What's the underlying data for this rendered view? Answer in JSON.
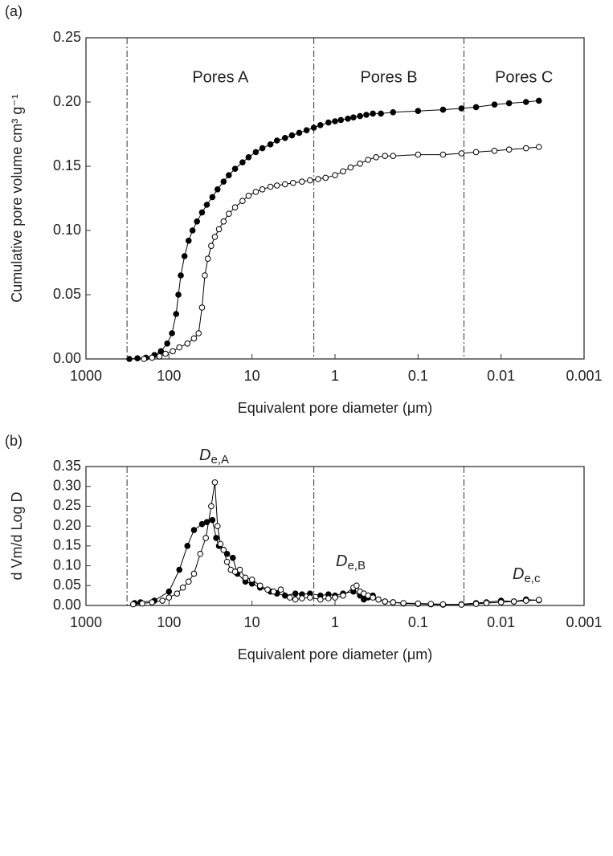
{
  "chart_data": [
    {
      "type": "line",
      "panel_label": "(a)",
      "x_scale": "log",
      "xlabel": "Equivalent pore diameter (μm)",
      "ylabel": "Cumulative pore volume cm³ g⁻¹",
      "xlim": [
        1000,
        0.001
      ],
      "xticks": [
        1000,
        100,
        10,
        1,
        0.1,
        0.01,
        0.001
      ],
      "ylim": [
        0,
        0.25
      ],
      "yticks": [
        {
          "value": 0,
          "label": "0.00"
        },
        0.05,
        {
          "value": 0.1,
          "label": "0.10"
        },
        0.15,
        {
          "value": 0.2,
          "label": "0.20"
        },
        0.25
      ],
      "boundaries": [
        320,
        1.8,
        0.028
      ],
      "region_labels": [
        "Pores A",
        "Pores B",
        "Pores C"
      ],
      "series": [
        {
          "color": "#000000",
          "marker_fill": "#000000",
          "x": [
            300,
            240,
            190,
            150,
            125,
            105,
            92,
            82,
            77,
            72,
            65,
            58,
            52,
            46,
            40,
            35,
            30,
            26,
            22,
            19,
            16,
            13,
            11,
            9,
            7.5,
            6,
            5,
            4,
            3.3,
            2.7,
            2.2,
            1.8,
            1.5,
            1.2,
            1,
            0.85,
            0.7,
            0.6,
            0.5,
            0.42,
            0.35,
            0.28,
            0.2,
            0.1,
            0.05,
            0.03,
            0.02,
            0.012,
            0.008,
            0.005,
            0.0035
          ],
          "values": [
            0,
            0.0005,
            0.001,
            0.003,
            0.006,
            0.012,
            0.02,
            0.035,
            0.05,
            0.065,
            0.08,
            0.092,
            0.1,
            0.107,
            0.114,
            0.12,
            0.126,
            0.132,
            0.138,
            0.143,
            0.148,
            0.153,
            0.157,
            0.161,
            0.164,
            0.167,
            0.17,
            0.172,
            0.174,
            0.176,
            0.178,
            0.18,
            0.182,
            0.184,
            0.185,
            0.186,
            0.187,
            0.188,
            0.189,
            0.19,
            0.191,
            0.191,
            0.192,
            0.193,
            0.194,
            0.195,
            0.196,
            0.198,
            0.199,
            0.2,
            0.201
          ]
        },
        {
          "color": "#000000",
          "marker_fill": "#ffffff",
          "x": [
            200,
            160,
            130,
            110,
            90,
            75,
            60,
            50,
            44,
            40,
            37,
            34,
            31,
            28,
            25,
            22,
            19,
            16,
            13,
            11,
            9,
            7.5,
            6,
            5,
            4,
            3.2,
            2.5,
            2,
            1.6,
            1.3,
            1,
            0.8,
            0.65,
            0.5,
            0.4,
            0.32,
            0.25,
            0.2,
            0.1,
            0.05,
            0.03,
            0.02,
            0.012,
            0.008,
            0.005,
            0.0035
          ],
          "values": [
            0,
            0.001,
            0.002,
            0.004,
            0.006,
            0.009,
            0.012,
            0.016,
            0.02,
            0.04,
            0.065,
            0.078,
            0.088,
            0.095,
            0.101,
            0.107,
            0.113,
            0.118,
            0.123,
            0.127,
            0.13,
            0.132,
            0.134,
            0.135,
            0.136,
            0.137,
            0.138,
            0.139,
            0.14,
            0.141,
            0.143,
            0.146,
            0.149,
            0.152,
            0.155,
            0.157,
            0.158,
            0.158,
            0.159,
            0.159,
            0.16,
            0.161,
            0.162,
            0.163,
            0.164,
            0.165
          ]
        }
      ]
    },
    {
      "type": "line",
      "panel_label": "(b)",
      "x_scale": "log",
      "xlabel": "Equivalent pore diameter (μm)",
      "ylabel": "d Vm/d Log D",
      "xlim": [
        1000,
        0.001
      ],
      "xticks": [
        1000,
        100,
        10,
        1,
        0.1,
        0.01,
        0.001
      ],
      "ylim": [
        0,
        0.35
      ],
      "yticks": [
        {
          "value": 0,
          "label": "0.00"
        },
        0.05,
        {
          "value": 0.1,
          "label": "0.10"
        },
        0.15,
        {
          "value": 0.2,
          "label": "0.20"
        },
        0.25,
        {
          "value": 0.3,
          "label": "0.30"
        },
        0.35
      ],
      "boundaries": [
        320,
        1.8,
        0.028
      ],
      "annotations": [
        {
          "symbol": "D",
          "subscript": "e,A"
        },
        {
          "symbol": "D",
          "subscript": "e,B"
        },
        {
          "symbol": "D",
          "subscript": "e,c"
        }
      ],
      "series": [
        {
          "color": "#000000",
          "marker_fill": "#000000",
          "x": [
            260,
            220,
            150,
            100,
            75,
            60,
            50,
            40,
            35,
            30,
            27,
            25,
            22,
            20,
            17,
            15,
            12,
            10,
            8,
            6,
            5,
            4,
            3,
            2.5,
            2,
            1.5,
            1.2,
            1,
            0.8,
            0.6,
            0.5,
            0.45,
            0.4,
            0.35,
            0.3,
            0.25,
            0.2,
            0.15,
            0.1,
            0.07,
            0.05,
            0.03,
            0.02,
            0.015,
            0.01,
            0.007,
            0.005,
            0.0035
          ],
          "values": [
            0.006,
            0.008,
            0.012,
            0.035,
            0.09,
            0.15,
            0.19,
            0.205,
            0.21,
            0.215,
            0.17,
            0.15,
            0.14,
            0.13,
            0.12,
            0.08,
            0.06,
            0.055,
            0.045,
            0.035,
            0.03,
            0.025,
            0.03,
            0.028,
            0.03,
            0.025,
            0.028,
            0.025,
            0.03,
            0.035,
            0.025,
            0.015,
            0.02,
            0.025,
            0.015,
            0.01,
            0.008,
            0.005,
            0.004,
            0.003,
            0.002,
            0.003,
            0.006,
            0.008,
            0.012,
            0.01,
            0.015,
            0.013
          ]
        },
        {
          "color": "#000000",
          "marker_fill": "#ffffff",
          "x": [
            270,
            210,
            160,
            120,
            100,
            80,
            68,
            58,
            50,
            42,
            36,
            31,
            28,
            26,
            24,
            22,
            20,
            18,
            16,
            14,
            12,
            10,
            8,
            6.5,
            5.5,
            4.5,
            3.5,
            3,
            2.5,
            2,
            1.5,
            1.2,
            1,
            0.8,
            0.6,
            0.55,
            0.5,
            0.45,
            0.4,
            0.35,
            0.3,
            0.25,
            0.2,
            0.15,
            0.1,
            0.07,
            0.05,
            0.03,
            0.02,
            0.015,
            0.01,
            0.007,
            0.005,
            0.0035
          ],
          "values": [
            0.003,
            0.005,
            0.008,
            0.012,
            0.02,
            0.03,
            0.045,
            0.06,
            0.08,
            0.13,
            0.17,
            0.25,
            0.31,
            0.2,
            0.155,
            0.14,
            0.11,
            0.09,
            0.085,
            0.09,
            0.07,
            0.065,
            0.05,
            0.04,
            0.035,
            0.04,
            0.02,
            0.015,
            0.018,
            0.02,
            0.015,
            0.018,
            0.02,
            0.025,
            0.045,
            0.05,
            0.035,
            0.03,
            0.025,
            0.02,
            0.015,
            0.01,
            0.008,
            0.006,
            0.005,
            0.004,
            0.003,
            0.002,
            0.004,
            0.006,
            0.008,
            0.01,
            0.012,
            0.014
          ]
        }
      ]
    }
  ]
}
